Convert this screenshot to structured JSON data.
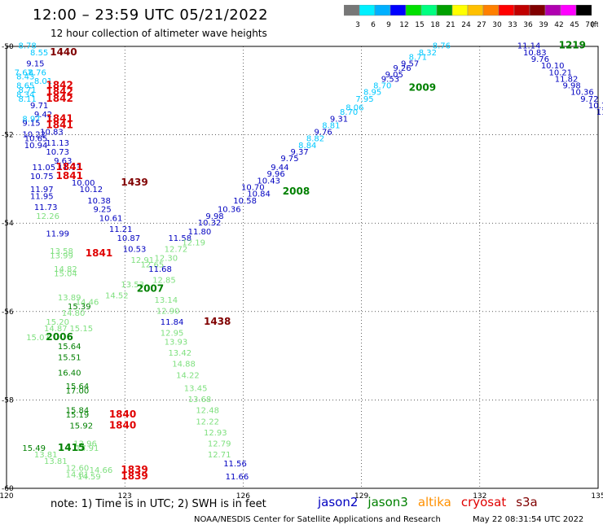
{
  "header": {
    "title": "12:00 – 23:59 UTC 05/21/2022",
    "subtitle": "12 hour collection of altimeter wave heights"
  },
  "color_scale": {
    "colors": [
      "#777777",
      "#00f0ff",
      "#00b0ff",
      "#0000ff",
      "#00e000",
      "#00ff80",
      "#00a000",
      "#ffff00",
      "#ffc000",
      "#ff8000",
      "#ff0000",
      "#c00000",
      "#800000",
      "#b000b0",
      "#ff00ff",
      "#000000"
    ],
    "labels": [
      "3",
      "6",
      "9",
      "12",
      "15",
      "18",
      "21",
      "24",
      "27",
      "30",
      "33",
      "36",
      "39",
      "42",
      "45",
      "70",
      "(ft)"
    ]
  },
  "map": {
    "lon_ticks": [
      "120",
      "123",
      "126",
      "129",
      "132",
      "135"
    ],
    "lat_ticks": [
      "-50",
      "-52",
      "-54",
      "-56",
      "-58",
      "-60"
    ]
  },
  "footer": {
    "note": "note:  1) Time is in UTC; 2) SWH is in feet",
    "credit": "NOAA/NESDIS Center for Satellite Applications and Research",
    "timestamp": "May 22 08:31:54 UTC 2022"
  },
  "satellites": [
    {
      "name": "jason2",
      "color": "#0000c0"
    },
    {
      "name": "jason3",
      "color": "#008000"
    },
    {
      "name": "altika",
      "color": "#ff9000"
    },
    {
      "name": "cryosat",
      "color": "#e00000"
    },
    {
      "name": "s3a",
      "color": "#800000"
    }
  ],
  "sat_colors": {
    "j3": "#0000c0",
    "al": "#7fe07f",
    "ja": "#00c8ff",
    "cs": "#e00000",
    "s3": "#800000",
    "hr": "#008000"
  },
  "observations": [
    {
      "t": "8.78",
      "lon": 120.3,
      "lat": -50.05,
      "s": "ja"
    },
    {
      "t": "8.55",
      "lon": 120.6,
      "lat": -50.2,
      "s": "ja"
    },
    {
      "t": "9.15",
      "lon": 120.5,
      "lat": -50.45,
      "s": "j3"
    },
    {
      "t": "7.67",
      "lon": 120.2,
      "lat": -50.65,
      "s": "ja"
    },
    {
      "t": "8.76",
      "lon": 120.55,
      "lat": -50.65,
      "s": "ja"
    },
    {
      "t": "8.43",
      "lon": 120.25,
      "lat": -50.75,
      "s": "ja"
    },
    {
      "t": "8.01",
      "lon": 120.7,
      "lat": -50.85,
      "s": "ja"
    },
    {
      "t": "8.65",
      "lon": 120.25,
      "lat": -50.95,
      "s": "ja"
    },
    {
      "t": "8.71",
      "lon": 120.3,
      "lat": -51.05,
      "s": "ja"
    },
    {
      "t": "8.34",
      "lon": 120.25,
      "lat": -51.15,
      "s": "ja"
    },
    {
      "t": "8.11",
      "lon": 120.3,
      "lat": -51.25,
      "s": "ja"
    },
    {
      "t": "9.71",
      "lon": 120.6,
      "lat": -51.4,
      "s": "j3"
    },
    {
      "t": "9.42",
      "lon": 120.7,
      "lat": -51.6,
      "s": "j3"
    },
    {
      "t": "8.97",
      "lon": 120.4,
      "lat": -51.7,
      "s": "ja"
    },
    {
      "t": "9.15",
      "lon": 120.4,
      "lat": -51.8,
      "s": "j3"
    },
    {
      "t": "10.83",
      "lon": 120.85,
      "lat": -52.0,
      "s": "j3"
    },
    {
      "t": "10.22",
      "lon": 120.4,
      "lat": -52.05,
      "s": "j3"
    },
    {
      "t": "10.65",
      "lon": 120.45,
      "lat": -52.15,
      "s": "j3"
    },
    {
      "t": "11.13",
      "lon": 121.0,
      "lat": -52.25,
      "s": "j3"
    },
    {
      "t": "10.94",
      "lon": 120.45,
      "lat": -52.3,
      "s": "j3"
    },
    {
      "t": "10.73",
      "lon": 121.0,
      "lat": -52.45,
      "s": "j3"
    },
    {
      "t": "9.63",
      "lon": 121.2,
      "lat": -52.65,
      "s": "j3"
    },
    {
      "t": "11.05",
      "lon": 120.65,
      "lat": -52.8,
      "s": "j3"
    },
    {
      "t": "11.73",
      "lon": 121.3,
      "lat": -52.8,
      "s": "j3"
    },
    {
      "t": "10.75",
      "lon": 120.6,
      "lat": -53.0,
      "s": "j3"
    },
    {
      "t": "10.00",
      "lon": 121.65,
      "lat": -53.15,
      "s": "j3"
    },
    {
      "t": "11.97",
      "lon": 120.6,
      "lat": -53.3,
      "s": "j3"
    },
    {
      "t": "10.12",
      "lon": 121.85,
      "lat": -53.3,
      "s": "j3"
    },
    {
      "t": "11.95",
      "lon": 120.6,
      "lat": -53.45,
      "s": "j3"
    },
    {
      "t": "10.38",
      "lon": 122.05,
      "lat": -53.55,
      "s": "j3"
    },
    {
      "t": "11.73",
      "lon": 120.7,
      "lat": -53.7,
      "s": "j3"
    },
    {
      "t": "9.25",
      "lon": 122.2,
      "lat": -53.75,
      "s": "j3"
    },
    {
      "t": "12.26",
      "lon": 120.75,
      "lat": -53.9,
      "s": "al"
    },
    {
      "t": "10.61",
      "lon": 122.35,
      "lat": -53.95,
      "s": "j3"
    },
    {
      "t": "11.21",
      "lon": 122.6,
      "lat": -54.2,
      "s": "j3"
    },
    {
      "t": "11.99",
      "lon": 121.0,
      "lat": -54.3,
      "s": "j3"
    },
    {
      "t": "10.87",
      "lon": 122.8,
      "lat": -54.4,
      "s": "j3"
    },
    {
      "t": "13.58",
      "lon": 121.1,
      "lat": -54.7,
      "s": "al"
    },
    {
      "t": "13.99",
      "lon": 121.1,
      "lat": -54.8,
      "s": "al"
    },
    {
      "t": "10.53",
      "lon": 122.95,
      "lat": -54.65,
      "s": "j3"
    },
    {
      "t": "12.91",
      "lon": 123.15,
      "lat": -54.9,
      "s": "al"
    },
    {
      "t": "12.65",
      "lon": 123.4,
      "lat": -55.0,
      "s": "al"
    },
    {
      "t": "14.82",
      "lon": 121.2,
      "lat": -55.1,
      "s": "al"
    },
    {
      "t": "15.04",
      "lon": 121.2,
      "lat": -55.2,
      "s": "al"
    },
    {
      "t": "11.68",
      "lon": 123.6,
      "lat": -55.1,
      "s": "j3"
    },
    {
      "t": "12.85",
      "lon": 123.7,
      "lat": -55.35,
      "s": "al"
    },
    {
      "t": "13.53",
      "lon": 122.9,
      "lat": -55.45,
      "s": "al"
    },
    {
      "t": "14.52",
      "lon": 122.5,
      "lat": -55.7,
      "s": "al"
    },
    {
      "t": "13.89",
      "lon": 121.3,
      "lat": -55.75,
      "s": "al"
    },
    {
      "t": "14.46",
      "lon": 121.75,
      "lat": -55.85,
      "s": "al"
    },
    {
      "t": "13.14",
      "lon": 123.75,
      "lat": -55.8,
      "s": "al"
    },
    {
      "t": "15.39",
      "lon": 121.55,
      "lat": -55.95,
      "s": "hr"
    },
    {
      "t": "14.80",
      "lon": 121.4,
      "lat": -56.1,
      "s": "al"
    },
    {
      "t": "12.90",
      "lon": 123.8,
      "lat": -56.05,
      "s": "al"
    },
    {
      "t": "15.20",
      "lon": 121.0,
      "lat": -56.3,
      "s": "al"
    },
    {
      "t": "11.84",
      "lon": 123.9,
      "lat": -56.3,
      "s": "j3"
    },
    {
      "t": "14.87",
      "lon": 120.95,
      "lat": -56.45,
      "s": "al"
    },
    {
      "t": "15.15",
      "lon": 121.6,
      "lat": -56.45,
      "s": "al"
    },
    {
      "t": "12.95",
      "lon": 123.9,
      "lat": -56.55,
      "s": "al"
    },
    {
      "t": "15.07",
      "lon": 120.5,
      "lat": -56.65,
      "s": "al"
    },
    {
      "t": "13.93",
      "lon": 124.0,
      "lat": -56.75,
      "s": "al"
    },
    {
      "t": "15.64",
      "lon": 121.3,
      "lat": -56.85,
      "s": "hr"
    },
    {
      "t": "13.42",
      "lon": 124.1,
      "lat": -57.0,
      "s": "al"
    },
    {
      "t": "15.51",
      "lon": 121.3,
      "lat": -57.1,
      "s": "hr"
    },
    {
      "t": "14.88",
      "lon": 124.2,
      "lat": -57.25,
      "s": "al"
    },
    {
      "t": "16.40",
      "lon": 121.3,
      "lat": -57.45,
      "s": "hr"
    },
    {
      "t": "14.22",
      "lon": 124.3,
      "lat": -57.5,
      "s": "al"
    },
    {
      "t": "15.64",
      "lon": 121.5,
      "lat": -57.75,
      "s": "hr"
    },
    {
      "t": "13.45",
      "lon": 124.5,
      "lat": -57.8,
      "s": "al"
    },
    {
      "t": "17.00",
      "lon": 121.5,
      "lat": -57.85,
      "s": "hr"
    },
    {
      "t": "13.68",
      "lon": 124.6,
      "lat": -58.05,
      "s": "al"
    },
    {
      "t": "15.84",
      "lon": 121.5,
      "lat": -58.3,
      "s": "hr"
    },
    {
      "t": "12.48",
      "lon": 124.8,
      "lat": -58.3,
      "s": "al"
    },
    {
      "t": "15.19",
      "lon": 121.5,
      "lat": -58.4,
      "s": "hr"
    },
    {
      "t": "12.22",
      "lon": 124.8,
      "lat": -58.55,
      "s": "al"
    },
    {
      "t": "15.92",
      "lon": 121.6,
      "lat": -58.65,
      "s": "hr"
    },
    {
      "t": "12.93",
      "lon": 125.0,
      "lat": -58.8,
      "s": "al"
    },
    {
      "t": "13.96",
      "lon": 121.7,
      "lat": -59.05,
      "s": "al"
    },
    {
      "t": "12.79",
      "lon": 125.1,
      "lat": -59.05,
      "s": "al"
    },
    {
      "t": "15.49",
      "lon": 120.4,
      "lat": -59.15,
      "s": "hr"
    },
    {
      "t": "14.91",
      "lon": 121.75,
      "lat": -59.15,
      "s": "al"
    },
    {
      "t": "12.71",
      "lon": 125.1,
      "lat": -59.3,
      "s": "al"
    },
    {
      "t": "13.81",
      "lon": 120.7,
      "lat": -59.3,
      "s": "al"
    },
    {
      "t": "13.81",
      "lon": 120.95,
      "lat": -59.45,
      "s": "al"
    },
    {
      "t": "11.56",
      "lon": 125.5,
      "lat": -59.5,
      "s": "j3"
    },
    {
      "t": "14.66",
      "lon": 122.1,
      "lat": -59.65,
      "s": "al"
    },
    {
      "t": "12.60",
      "lon": 121.5,
      "lat": -59.6,
      "s": "al"
    },
    {
      "t": "14.81",
      "lon": 121.5,
      "lat": -59.75,
      "s": "al"
    },
    {
      "t": "14.59",
      "lon": 121.8,
      "lat": -59.8,
      "s": "al"
    },
    {
      "t": "11.66",
      "lon": 125.55,
      "lat": -59.8,
      "s": "j3"
    },
    {
      "t": "11.58",
      "lon": 124.1,
      "lat": -54.4,
      "s": "j3"
    },
    {
      "t": "12.19",
      "lon": 124.45,
      "lat": -54.5,
      "s": "al"
    },
    {
      "t": "12.72",
      "lon": 124.0,
      "lat": -54.65,
      "s": "al"
    },
    {
      "t": "12.30",
      "lon": 123.75,
      "lat": -54.85,
      "s": "al"
    },
    {
      "t": "11.80",
      "lon": 124.6,
      "lat": -54.25,
      "s": "j3"
    },
    {
      "t": "10.32",
      "lon": 124.85,
      "lat": -54.05,
      "s": "j3"
    },
    {
      "t": "9.98",
      "lon": 125.05,
      "lat": -53.9,
      "s": "j3"
    },
    {
      "t": "10.36",
      "lon": 125.35,
      "lat": -53.75,
      "s": "j3"
    },
    {
      "t": "10.58",
      "lon": 125.75,
      "lat": -53.55,
      "s": "j3"
    },
    {
      "t": "10.84",
      "lon": 126.1,
      "lat": -53.4,
      "s": "j3"
    },
    {
      "t": "10.70",
      "lon": 125.95,
      "lat": -53.25,
      "s": "j3"
    },
    {
      "t": "10.43",
      "lon": 126.35,
      "lat": -53.1,
      "s": "j3"
    },
    {
      "t": "9.96",
      "lon": 126.6,
      "lat": -52.95,
      "s": "j3"
    },
    {
      "t": "9.44",
      "lon": 126.7,
      "lat": -52.8,
      "s": "j3"
    },
    {
      "t": "9.75",
      "lon": 126.95,
      "lat": -52.6,
      "s": "j3"
    },
    {
      "t": "9.37",
      "lon": 127.2,
      "lat": -52.45,
      "s": "j3"
    },
    {
      "t": "8.84",
      "lon": 127.4,
      "lat": -52.3,
      "s": "ja"
    },
    {
      "t": "8.82",
      "lon": 127.6,
      "lat": -52.15,
      "s": "ja"
    },
    {
      "t": "9.76",
      "lon": 127.8,
      "lat": -52.0,
      "s": "j3"
    },
    {
      "t": "8.81",
      "lon": 128.0,
      "lat": -51.85,
      "s": "ja"
    },
    {
      "t": "9.31",
      "lon": 128.2,
      "lat": -51.7,
      "s": "j3"
    },
    {
      "t": "8.70",
      "lon": 128.45,
      "lat": -51.55,
      "s": "ja"
    },
    {
      "t": "8.06",
      "lon": 128.6,
      "lat": -51.45,
      "s": "ja"
    },
    {
      "t": "7.95",
      "lon": 128.85,
      "lat": -51.25,
      "s": "ja"
    },
    {
      "t": "8.95",
      "lon": 129.05,
      "lat": -51.1,
      "s": "ja"
    },
    {
      "t": "8.70",
      "lon": 129.3,
      "lat": -50.95,
      "s": "ja"
    },
    {
      "t": "9.53",
      "lon": 129.5,
      "lat": -50.8,
      "s": "j3"
    },
    {
      "t": "9.05",
      "lon": 129.6,
      "lat": -50.7,
      "s": "j3"
    },
    {
      "t": "9.26",
      "lon": 129.8,
      "lat": -50.55,
      "s": "j3"
    },
    {
      "t": "9.57",
      "lon": 130.0,
      "lat": -50.45,
      "s": "j3"
    },
    {
      "t": "8.71",
      "lon": 130.2,
      "lat": -50.3,
      "s": "ja"
    },
    {
      "t": "8.32",
      "lon": 130.45,
      "lat": -50.2,
      "s": "ja"
    },
    {
      "t": "8.76",
      "lon": 130.8,
      "lat": -50.05,
      "s": "ja"
    },
    {
      "t": "11.14",
      "lon": 132.95,
      "lat": -50.05,
      "s": "j3"
    },
    {
      "t": "10.83",
      "lon": 133.1,
      "lat": -50.2,
      "s": "j3"
    },
    {
      "t": "9.76",
      "lon": 133.3,
      "lat": -50.35,
      "s": "j3"
    },
    {
      "t": "10.10",
      "lon": 133.55,
      "lat": -50.5,
      "s": "j3"
    },
    {
      "t": "10.21",
      "lon": 133.75,
      "lat": -50.65,
      "s": "j3"
    },
    {
      "t": "11.82",
      "lon": 133.9,
      "lat": -50.8,
      "s": "j3"
    },
    {
      "t": "9.98",
      "lon": 134.1,
      "lat": -50.95,
      "s": "j3"
    },
    {
      "t": "10.36",
      "lon": 134.3,
      "lat": -51.1,
      "s": "j3"
    },
    {
      "t": "9.72",
      "lon": 134.55,
      "lat": -51.25,
      "s": "j3"
    },
    {
      "t": "10.1",
      "lon": 134.75,
      "lat": -51.4,
      "s": "j3"
    },
    {
      "t": "11",
      "lon": 134.95,
      "lat": -51.55,
      "s": "j3"
    }
  ],
  "time_labels": [
    {
      "t": "1440",
      "lon": 121.1,
      "lat": -50.2,
      "s": "s3"
    },
    {
      "t": "1842",
      "lon": 121.0,
      "lat": -50.95,
      "s": "cs"
    },
    {
      "t": "1842",
      "lon": 121.0,
      "lat": -51.1,
      "s": "cs"
    },
    {
      "t": "1842",
      "lon": 121.0,
      "lat": -51.25,
      "s": "cs"
    },
    {
      "t": "1841",
      "lon": 121.0,
      "lat": -51.7,
      "s": "cs"
    },
    {
      "t": "1841",
      "lon": 121.0,
      "lat": -51.85,
      "s": "cs"
    },
    {
      "t": "1841",
      "lon": 121.25,
      "lat": -52.8,
      "s": "cs"
    },
    {
      "t": "1841",
      "lon": 121.25,
      "lat": -53.0,
      "s": "cs"
    },
    {
      "t": "1439",
      "lon": 122.9,
      "lat": -53.15,
      "s": "s3"
    },
    {
      "t": "2008",
      "lon": 127.0,
      "lat": -53.35,
      "s": "hr"
    },
    {
      "t": "1841",
      "lon": 122.0,
      "lat": -54.75,
      "s": "cs"
    },
    {
      "t": "2007",
      "lon": 123.3,
      "lat": -55.55,
      "s": "hr"
    },
    {
      "t": "1438",
      "lon": 125.0,
      "lat": -56.3,
      "s": "s3"
    },
    {
      "t": "2006",
      "lon": 121.0,
      "lat": -56.65,
      "s": "hr"
    },
    {
      "t": "1840",
      "lon": 122.6,
      "lat": -58.4,
      "s": "cs"
    },
    {
      "t": "1840",
      "lon": 122.6,
      "lat": -58.65,
      "s": "cs"
    },
    {
      "t": "1415",
      "lon": 121.3,
      "lat": -59.15,
      "s": "hr"
    },
    {
      "t": "1839",
      "lon": 122.9,
      "lat": -59.65,
      "s": "cs"
    },
    {
      "t": "1839",
      "lon": 122.9,
      "lat": -59.8,
      "s": "cs"
    },
    {
      "t": "2009",
      "lon": 130.2,
      "lat": -51.0,
      "s": "hr"
    },
    {
      "t": "1219",
      "lon": 134.0,
      "lat": -50.05,
      "s": "hr"
    }
  ]
}
